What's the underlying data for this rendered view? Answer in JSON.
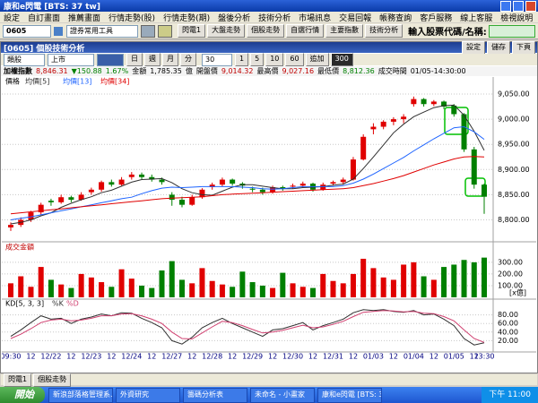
{
  "window": {
    "title": "康和e閃電 [BTS: 37 tw]"
  },
  "menu": [
    "設定",
    "自訂畫面",
    "推薦畫面",
    "行情走勢(股)",
    "行情走勢(期)",
    "盤後分析",
    "技術分析",
    "市場訊息",
    "交易回報",
    "帳務查詢",
    "客戶服務",
    "線上客服",
    "檢視說明"
  ],
  "toolbar": {
    "code": "0605",
    "tool": "證券常用工具",
    "buttons": [
      "閃電1",
      "大盤走勢",
      "個股走勢",
      "自選行情",
      "主要指數",
      "技術分析"
    ],
    "search_label": "輸入股票代碼/名稱:"
  },
  "panel": {
    "title": "[0605] 個股技術分析",
    "buttons": [
      "設定",
      "儲存",
      "下頁"
    ],
    "controls": [
      "類股",
      "上市"
    ],
    "periods": [
      "日",
      "週",
      "月",
      "分"
    ],
    "minutes": "30",
    "steps": [
      "1",
      "5",
      "10",
      "60",
      "追加",
      "300"
    ]
  },
  "quote": {
    "name": "加權指數",
    "price": "8,846.31",
    "change": "▼150.88",
    "pct": "1.67%",
    "amount_label": "金額",
    "amount": "1,785.35",
    "amount_unit": "億",
    "open_label": "開盤價",
    "open": "9,014.32",
    "high_label": "最高價",
    "high": "9,027.16",
    "low_label": "最低價",
    "low": "8,812.36",
    "time_label": "成交時間",
    "time": "01/05-14:30:00"
  },
  "chart_data": [
    {
      "type": "candlestick",
      "name": "價格",
      "up_color": "#e00000",
      "down_color": "#008000",
      "ohlc": [
        [
          8785,
          8795,
          8778,
          8790
        ],
        [
          8790,
          8805,
          8786,
          8800
        ],
        [
          8800,
          8818,
          8796,
          8815
        ],
        [
          8815,
          8834,
          8810,
          8830
        ],
        [
          8838,
          8842,
          8828,
          8835
        ],
        [
          8835,
          8850,
          8832,
          8845
        ],
        [
          8845,
          8848,
          8835,
          8840
        ],
        [
          8840,
          8855,
          8838,
          8850
        ],
        [
          8855,
          8864,
          8850,
          8860
        ],
        [
          8860,
          8878,
          8856,
          8875
        ],
        [
          8875,
          8880,
          8866,
          8870
        ],
        [
          8870,
          8885,
          8868,
          8880
        ],
        [
          8885,
          8895,
          8880,
          8890
        ],
        [
          8890,
          8894,
          8880,
          8885
        ],
        [
          8885,
          8890,
          8876,
          8880
        ],
        [
          8880,
          8884,
          8870,
          8875
        ],
        [
          8850,
          8855,
          8828,
          8840
        ],
        [
          8840,
          8846,
          8825,
          8830
        ],
        [
          8830,
          8850,
          8828,
          8845
        ],
        [
          8845,
          8863,
          8842,
          8860
        ],
        [
          8865,
          8874,
          8860,
          8870
        ],
        [
          8870,
          8884,
          8866,
          8880
        ],
        [
          8880,
          8882,
          8868,
          8872
        ],
        [
          8872,
          8875,
          8862,
          8868
        ],
        [
          8862,
          8866,
          8855,
          8860
        ],
        [
          8860,
          8864,
          8850,
          8855
        ],
        [
          8855,
          8868,
          8852,
          8865
        ],
        [
          8865,
          8868,
          8858,
          8862
        ],
        [
          8866,
          8872,
          8862,
          8868
        ],
        [
          8868,
          8876,
          8864,
          8872
        ],
        [
          8872,
          8874,
          8856,
          8860
        ],
        [
          8860,
          8874,
          8858,
          8870
        ],
        [
          8872,
          8878,
          8868,
          8875
        ],
        [
          8875,
          8884,
          8870,
          8880
        ],
        [
          8880,
          8925,
          8878,
          8920
        ],
        [
          8920,
          8970,
          8918,
          8965
        ],
        [
          8980,
          8992,
          8970,
          8985
        ],
        [
          8985,
          8998,
          8980,
          8995
        ],
        [
          8995,
          9004,
          8988,
          9000
        ],
        [
          9000,
          9010,
          8992,
          9005
        ],
        [
          9030,
          9045,
          9025,
          9040
        ],
        [
          9040,
          9042,
          9025,
          9030
        ],
        [
          9030,
          9038,
          9026,
          9035
        ],
        [
          9035,
          9037,
          9020,
          9025
        ],
        [
          9027,
          9030,
          9005,
          9010
        ],
        [
          9010,
          9012,
          8935,
          8940
        ],
        [
          8940,
          8945,
          8862,
          8870
        ],
        [
          8870,
          8872,
          8812,
          8846
        ]
      ],
      "series": [
        {
          "name": "均價[5]",
          "color": "#303030",
          "values": [
            8792,
            8795,
            8800,
            8808,
            8814,
            8825,
            8833,
            8840,
            8846,
            8854,
            8859,
            8867,
            8875,
            8880,
            8881,
            8882,
            8874,
            8862,
            8854,
            8850,
            8849,
            8857,
            8865,
            8870,
            8870,
            8867,
            8864,
            8862,
            8862,
            8864,
            8865,
            8866,
            8869,
            8871,
            8881,
            8902,
            8925,
            8949,
            8973,
            8990,
            9005,
            9014,
            9023,
            9027,
            9028,
            9008,
            8976,
            8938
          ]
        },
        {
          "name": "均價[13]",
          "color": "#1e64ff",
          "values": [
            8800,
            8803,
            8806,
            8810,
            8814,
            8818,
            8822,
            8826,
            8830,
            8834,
            8838,
            8842,
            8845,
            8852,
            8858,
            8863,
            8865,
            8864,
            8865,
            8866,
            8866,
            8866,
            8866,
            8865,
            8864,
            8862,
            8861,
            8862,
            8864,
            8866,
            8866,
            8866,
            8866,
            8868,
            8873,
            8881,
            8891,
            8902,
            8913,
            8924,
            8937,
            8949,
            8961,
            8972,
            8983,
            8985,
            8975,
            8960
          ]
        },
        {
          "name": "均價[34]",
          "color": "#e00000",
          "values": [
            8812,
            8814,
            8816,
            8818,
            8820,
            8822,
            8824,
            8826,
            8828,
            8830,
            8832,
            8834,
            8836,
            8838,
            8840,
            8842,
            8843,
            8844,
            8845,
            8846,
            8848,
            8850,
            8851,
            8852,
            8853,
            8854,
            8855,
            8856,
            8857,
            8858,
            8859,
            8860,
            8861,
            8862,
            8864,
            8868,
            8872,
            8877,
            8882,
            8888,
            8895,
            8902,
            8909,
            8915,
            8921,
            8925,
            8926,
            8925
          ]
        }
      ],
      "ylim": [
        8760,
        9066
      ],
      "yticks": [
        {
          "value": 8800,
          "label": "8,800.00"
        },
        {
          "value": 8850,
          "label": "8,850.00"
        },
        {
          "value": 8900,
          "label": "8,900.00"
        },
        {
          "value": 8950,
          "label": "8,950.00"
        },
        {
          "value": 9000,
          "label": "9,000.00"
        },
        {
          "value": 9050,
          "label": "9,050.00"
        }
      ],
      "grid": true
    },
    {
      "type": "bar",
      "title": "成交金額",
      "unit": "[x億]",
      "values": [
        120,
        180,
        90,
        260,
        150,
        110,
        80,
        200,
        170,
        130,
        90,
        240,
        160,
        100,
        80,
        230,
        310,
        150,
        120,
        250,
        140,
        110,
        90,
        220,
        130,
        100,
        80,
        210,
        120,
        90,
        80,
        200,
        140,
        120,
        200,
        330,
        250,
        170,
        150,
        280,
        300,
        180,
        150,
        260,
        280,
        320,
        300,
        340
      ],
      "ylim": [
        0,
        460
      ],
      "yticks": [
        {
          "value": 100,
          "label": "100.00"
        },
        {
          "value": 200,
          "label": "200.00"
        },
        {
          "value": 300,
          "label": "300.00"
        }
      ],
      "grid": true
    },
    {
      "type": "line",
      "title": "KD[5, 3, 3]",
      "categories": [
        "09:30",
        null,
        "12",
        null,
        "12/22",
        null,
        "12",
        null,
        "12/23",
        null,
        "12",
        null,
        "12/24",
        null,
        "12",
        null,
        "12/27",
        null,
        "12",
        null,
        "12/28",
        null,
        "12",
        null,
        "12/29",
        null,
        "12",
        null,
        "12/30",
        null,
        "12",
        null,
        "12/31",
        null,
        "12",
        null,
        "01/03",
        null,
        "12",
        null,
        "01/04",
        null,
        "12",
        null,
        "01/05",
        null,
        "12",
        "13:30"
      ],
      "series": [
        {
          "name": "%K",
          "color": "#303030",
          "values": [
            30,
            45,
            62,
            78,
            70,
            72,
            60,
            70,
            75,
            82,
            78,
            85,
            84,
            72,
            62,
            50,
            20,
            12,
            28,
            50,
            62,
            72,
            60,
            50,
            40,
            30,
            45,
            48,
            55,
            62,
            45,
            55,
            62,
            70,
            85,
            92,
            90,
            92,
            88,
            86,
            90,
            80,
            82,
            70,
            55,
            25,
            10,
            15
          ]
        },
        {
          "name": "%D",
          "color": "#d04070",
          "values": [
            25,
            35,
            48,
            62,
            68,
            70,
            66,
            68,
            72,
            78,
            78,
            82,
            83,
            78,
            70,
            60,
            40,
            25,
            24,
            38,
            52,
            65,
            62,
            55,
            46,
            38,
            40,
            44,
            50,
            56,
            50,
            52,
            58,
            65,
            76,
            86,
            88,
            90,
            89,
            87,
            88,
            84,
            83,
            76,
            66,
            45,
            25,
            16
          ]
        }
      ],
      "ylim": [
        0,
        100
      ],
      "yticks": [
        {
          "value": 20,
          "label": "20.00"
        },
        {
          "value": 40,
          "label": "40.00"
        },
        {
          "value": 60,
          "label": "60.00"
        },
        {
          "value": 80,
          "label": "80.00"
        }
      ],
      "grid": true
    }
  ],
  "tabs": [
    "閃電1",
    "個股走勢"
  ],
  "taskbar": {
    "start": "開始",
    "items": [
      "新浪部落格管理系...",
      "外資研究",
      "籌碼分析表",
      "未命名 - 小畫家",
      "康和e閃電 [BTS: 37..."
    ],
    "clock": "下午 11:00"
  }
}
